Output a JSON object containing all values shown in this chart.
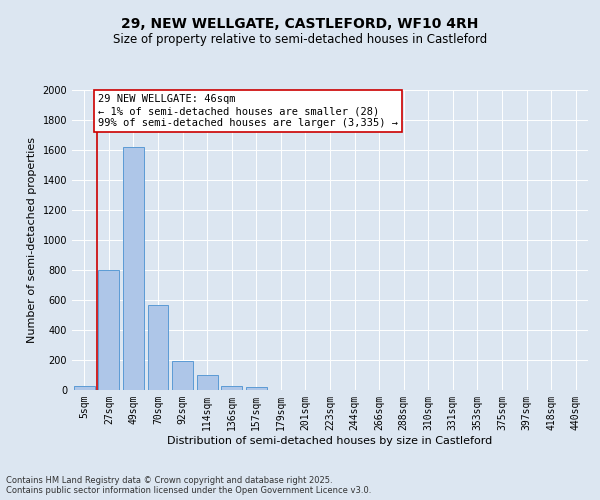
{
  "title_line1": "29, NEW WELLGATE, CASTLEFORD, WF10 4RH",
  "title_line2": "Size of property relative to semi-detached houses in Castleford",
  "xlabel": "Distribution of semi-detached houses by size in Castleford",
  "ylabel": "Number of semi-detached properties",
  "categories": [
    "5sqm",
    "27sqm",
    "49sqm",
    "70sqm",
    "92sqm",
    "114sqm",
    "136sqm",
    "157sqm",
    "179sqm",
    "201sqm",
    "223sqm",
    "244sqm",
    "266sqm",
    "288sqm",
    "310sqm",
    "331sqm",
    "353sqm",
    "375sqm",
    "397sqm",
    "418sqm",
    "440sqm"
  ],
  "values": [
    28,
    800,
    1620,
    570,
    195,
    100,
    30,
    20,
    0,
    0,
    0,
    0,
    0,
    0,
    0,
    0,
    0,
    0,
    0,
    0,
    0
  ],
  "bar_color": "#aec6e8",
  "bar_edge_color": "#5b9bd5",
  "annotation_text": "29 NEW WELLGATE: 46sqm\n← 1% of semi-detached houses are smaller (28)\n99% of semi-detached houses are larger (3,335) →",
  "annotation_box_color": "#ffffff",
  "annotation_border_color": "#cc0000",
  "vline_color": "#cc0000",
  "ylim": [
    0,
    2000
  ],
  "yticks": [
    0,
    200,
    400,
    600,
    800,
    1000,
    1200,
    1400,
    1600,
    1800,
    2000
  ],
  "background_color": "#dce6f1",
  "footer_text": "Contains HM Land Registry data © Crown copyright and database right 2025.\nContains public sector information licensed under the Open Government Licence v3.0.",
  "title_fontsize": 10,
  "subtitle_fontsize": 8.5,
  "axis_label_fontsize": 8,
  "tick_fontsize": 7,
  "annotation_fontsize": 7.5,
  "footer_fontsize": 6
}
